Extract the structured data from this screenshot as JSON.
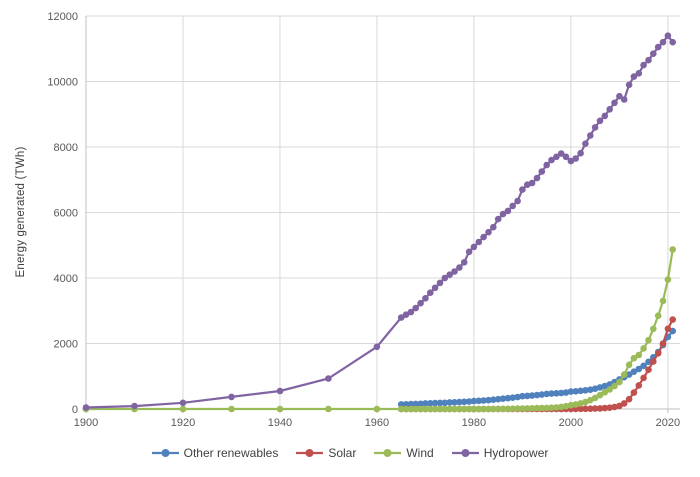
{
  "chart_data": {
    "type": "line",
    "title": "",
    "xlabel": "",
    "ylabel": "Energy generated (TWh)",
    "xlim": [
      1900,
      2022.5
    ],
    "ylim": [
      0,
      12000
    ],
    "x_ticks": [
      1900,
      1920,
      1940,
      1960,
      1980,
      2000,
      2020
    ],
    "y_ticks": [
      0,
      2000,
      4000,
      6000,
      8000,
      10000,
      12000
    ],
    "grid": true,
    "legend_position": "bottom",
    "colors": {
      "grid": "#d9d9d9",
      "axis": "#bfbfbf",
      "tick_label": "#595959",
      "legend_text": "#404040"
    },
    "series": [
      {
        "name": "Other renewables",
        "color": "#4F81BD",
        "marker": "circle",
        "x": [
          1965,
          1966,
          1967,
          1968,
          1969,
          1970,
          1971,
          1972,
          1973,
          1974,
          1975,
          1976,
          1977,
          1978,
          1979,
          1980,
          1981,
          1982,
          1983,
          1984,
          1985,
          1986,
          1987,
          1988,
          1989,
          1990,
          1991,
          1992,
          1993,
          1994,
          1995,
          1996,
          1997,
          1998,
          1999,
          2000,
          2001,
          2002,
          2003,
          2004,
          2005,
          2006,
          2007,
          2008,
          2009,
          2010,
          2011,
          2012,
          2013,
          2014,
          2015,
          2016,
          2017,
          2018,
          2019,
          2020,
          2021
        ],
        "y": [
          140,
          145,
          150,
          155,
          160,
          170,
          175,
          180,
          185,
          190,
          200,
          205,
          210,
          220,
          230,
          240,
          250,
          260,
          270,
          285,
          300,
          315,
          330,
          345,
          365,
          390,
          400,
          410,
          425,
          440,
          460,
          470,
          480,
          490,
          505,
          530,
          540,
          555,
          570,
          590,
          620,
          660,
          700,
          750,
          820,
          905,
          970,
          1050,
          1140,
          1220,
          1320,
          1440,
          1580,
          1740,
          1950,
          2200,
          2380
        ]
      },
      {
        "name": "Solar",
        "color": "#C0504D",
        "marker": "circle",
        "x": [
          1965,
          1966,
          1967,
          1968,
          1969,
          1970,
          1971,
          1972,
          1973,
          1974,
          1975,
          1976,
          1977,
          1978,
          1979,
          1980,
          1981,
          1982,
          1983,
          1984,
          1985,
          1986,
          1987,
          1988,
          1989,
          1990,
          1991,
          1992,
          1993,
          1994,
          1995,
          1996,
          1997,
          1998,
          1999,
          2000,
          2001,
          2002,
          2003,
          2004,
          2005,
          2006,
          2007,
          2008,
          2009,
          2010,
          2011,
          2012,
          2013,
          2014,
          2015,
          2016,
          2017,
          2018,
          2019,
          2020,
          2021
        ],
        "y": [
          0,
          0,
          0,
          0,
          0,
          0,
          0,
          0,
          0,
          0,
          0,
          0,
          0,
          0,
          0,
          0,
          0,
          0,
          0,
          0,
          0,
          0,
          0,
          0,
          0,
          0,
          0,
          0,
          0,
          0,
          0,
          0,
          0,
          0,
          0,
          3,
          4,
          5,
          7,
          10,
          14,
          19,
          26,
          40,
          60,
          95,
          170,
          300,
          500,
          720,
          950,
          1200,
          1450,
          1700,
          2000,
          2450,
          2730
        ]
      },
      {
        "name": "Wind",
        "color": "#9BBB59",
        "marker": "circle",
        "x": [
          1900,
          1910,
          1920,
          1930,
          1940,
          1950,
          1960,
          1965,
          1966,
          1967,
          1968,
          1969,
          1970,
          1971,
          1972,
          1973,
          1974,
          1975,
          1976,
          1977,
          1978,
          1979,
          1980,
          1981,
          1982,
          1983,
          1984,
          1985,
          1986,
          1987,
          1988,
          1989,
          1990,
          1991,
          1992,
          1993,
          1994,
          1995,
          1996,
          1997,
          1998,
          1999,
          2000,
          2001,
          2002,
          2003,
          2004,
          2005,
          2006,
          2007,
          2008,
          2009,
          2010,
          2011,
          2012,
          2013,
          2014,
          2015,
          2016,
          2017,
          2018,
          2019,
          2020,
          2021
        ],
        "y": [
          0,
          0,
          0,
          0,
          0,
          0,
          0,
          0,
          0,
          0,
          0,
          0,
          0,
          0,
          0,
          0,
          0,
          0,
          0,
          0,
          0,
          0,
          0,
          0,
          0,
          0,
          0,
          2,
          3,
          5,
          8,
          12,
          15,
          18,
          22,
          26,
          30,
          35,
          40,
          50,
          65,
          85,
          115,
          140,
          170,
          210,
          270,
          340,
          420,
          510,
          600,
          700,
          820,
          1050,
          1350,
          1550,
          1650,
          1850,
          2100,
          2450,
          2850,
          3300,
          3950,
          4870
        ]
      },
      {
        "name": "Hydropower",
        "color": "#8064A2",
        "marker": "circle",
        "x": [
          1900,
          1910,
          1920,
          1930,
          1940,
          1950,
          1960,
          1965,
          1966,
          1967,
          1968,
          1969,
          1970,
          1971,
          1972,
          1973,
          1974,
          1975,
          1976,
          1977,
          1978,
          1979,
          1980,
          1981,
          1982,
          1983,
          1984,
          1985,
          1986,
          1987,
          1988,
          1989,
          1990,
          1991,
          1992,
          1993,
          1994,
          1995,
          1996,
          1997,
          1998,
          1999,
          2000,
          2001,
          2002,
          2003,
          2004,
          2005,
          2006,
          2007,
          2008,
          2009,
          2010,
          2011,
          2012,
          2013,
          2014,
          2015,
          2016,
          2017,
          2018,
          2019,
          2020,
          2021
        ],
        "y": [
          45,
          90,
          190,
          370,
          550,
          930,
          1900,
          2790,
          2880,
          2960,
          3080,
          3230,
          3380,
          3550,
          3700,
          3850,
          4000,
          4100,
          4200,
          4320,
          4480,
          4800,
          4950,
          5100,
          5250,
          5400,
          5550,
          5800,
          5950,
          6050,
          6200,
          6350,
          6700,
          6850,
          6900,
          7050,
          7250,
          7450,
          7600,
          7700,
          7800,
          7700,
          7570,
          7650,
          7810,
          8100,
          8350,
          8600,
          8800,
          8950,
          9150,
          9350,
          9550,
          9450,
          9900,
          10150,
          10250,
          10500,
          10650,
          10850,
          11050,
          11200,
          11400,
          11200
        ]
      }
    ]
  }
}
